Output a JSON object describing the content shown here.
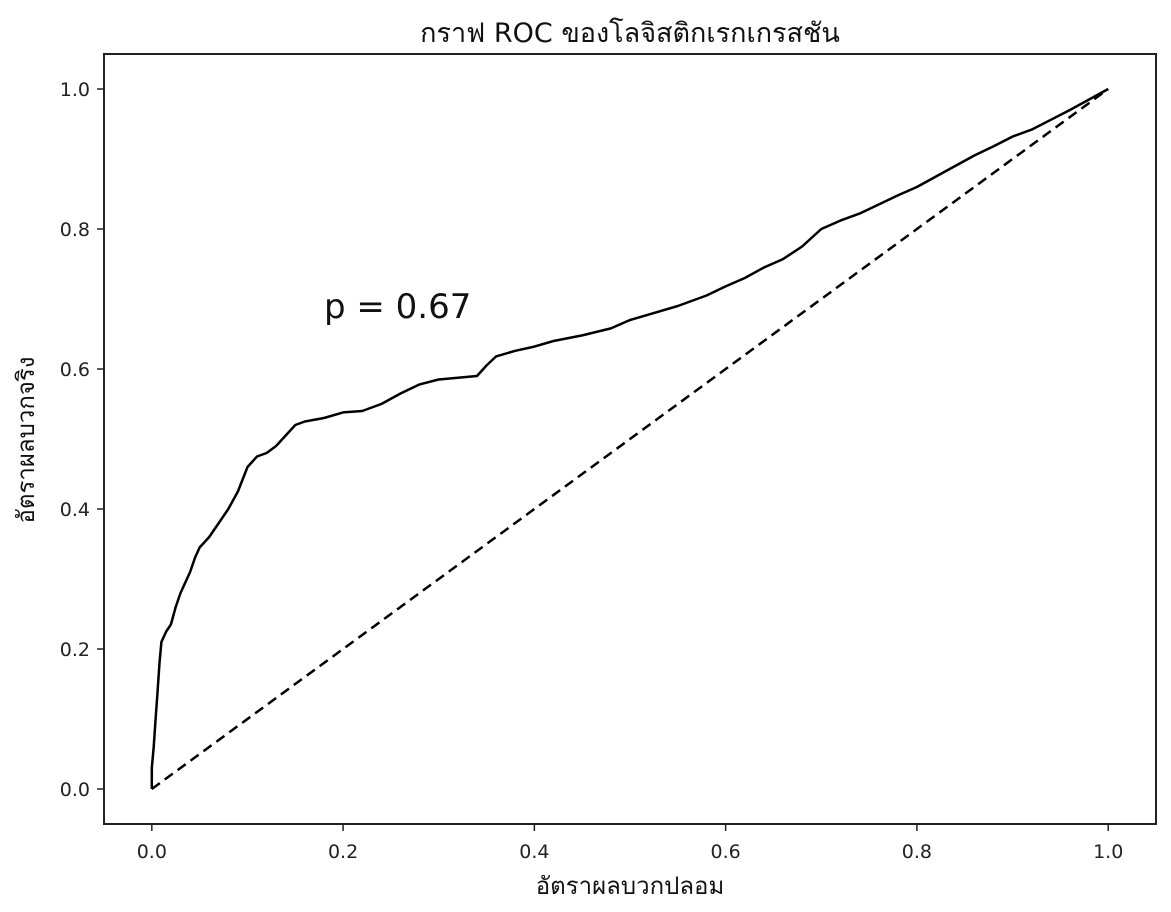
{
  "chart_data": {
    "type": "line",
    "title": "กราฟ ROC ของโลจิสติกเรกเกรสชัน",
    "xlabel": "อัตราผลบวกปลอม",
    "ylabel": "อัตราผลบวกจริง",
    "xlim": [
      -0.05,
      1.05
    ],
    "ylim": [
      -0.05,
      1.05
    ],
    "xticks": [
      0.0,
      0.2,
      0.4,
      0.6,
      0.8,
      1.0
    ],
    "yticks": [
      0.0,
      0.2,
      0.4,
      0.6,
      0.8,
      1.0
    ],
    "xtick_labels": [
      "0.0",
      "0.2",
      "0.4",
      "0.6",
      "0.8",
      "1.0"
    ],
    "ytick_labels": [
      "0.0",
      "0.2",
      "0.4",
      "0.6",
      "0.8",
      "1.0"
    ],
    "grid": false,
    "annotation": {
      "text": "p = 0.67",
      "x": 0.18,
      "y": 0.69
    },
    "series": [
      {
        "style": "solid",
        "color": "#000000",
        "x": [
          0.0,
          0.0,
          0.002,
          0.004,
          0.006,
          0.008,
          0.01,
          0.015,
          0.02,
          0.025,
          0.03,
          0.035,
          0.04,
          0.045,
          0.05,
          0.06,
          0.07,
          0.08,
          0.09,
          0.1,
          0.11,
          0.12,
          0.13,
          0.14,
          0.15,
          0.16,
          0.18,
          0.2,
          0.22,
          0.24,
          0.26,
          0.28,
          0.3,
          0.34,
          0.35,
          0.36,
          0.38,
          0.4,
          0.42,
          0.45,
          0.48,
          0.5,
          0.52,
          0.55,
          0.58,
          0.6,
          0.62,
          0.64,
          0.66,
          0.68,
          0.7,
          0.72,
          0.74,
          0.76,
          0.78,
          0.8,
          0.82,
          0.84,
          0.86,
          0.88,
          0.9,
          0.92,
          0.94,
          0.96,
          0.98,
          1.0
        ],
        "y": [
          0.0,
          0.03,
          0.06,
          0.1,
          0.14,
          0.18,
          0.21,
          0.225,
          0.235,
          0.26,
          0.28,
          0.295,
          0.31,
          0.33,
          0.345,
          0.36,
          0.38,
          0.4,
          0.425,
          0.46,
          0.475,
          0.48,
          0.49,
          0.505,
          0.52,
          0.525,
          0.53,
          0.538,
          0.54,
          0.55,
          0.565,
          0.578,
          0.585,
          0.59,
          0.605,
          0.618,
          0.626,
          0.632,
          0.64,
          0.648,
          0.658,
          0.67,
          0.678,
          0.69,
          0.705,
          0.718,
          0.73,
          0.745,
          0.757,
          0.775,
          0.8,
          0.812,
          0.822,
          0.835,
          0.848,
          0.86,
          0.875,
          0.89,
          0.905,
          0.918,
          0.932,
          0.942,
          0.956,
          0.97,
          0.985,
          1.0
        ]
      },
      {
        "style": "dashed",
        "color": "#000000",
        "x": [
          0.0,
          1.0
        ],
        "y": [
          0.0,
          1.0
        ]
      }
    ]
  }
}
